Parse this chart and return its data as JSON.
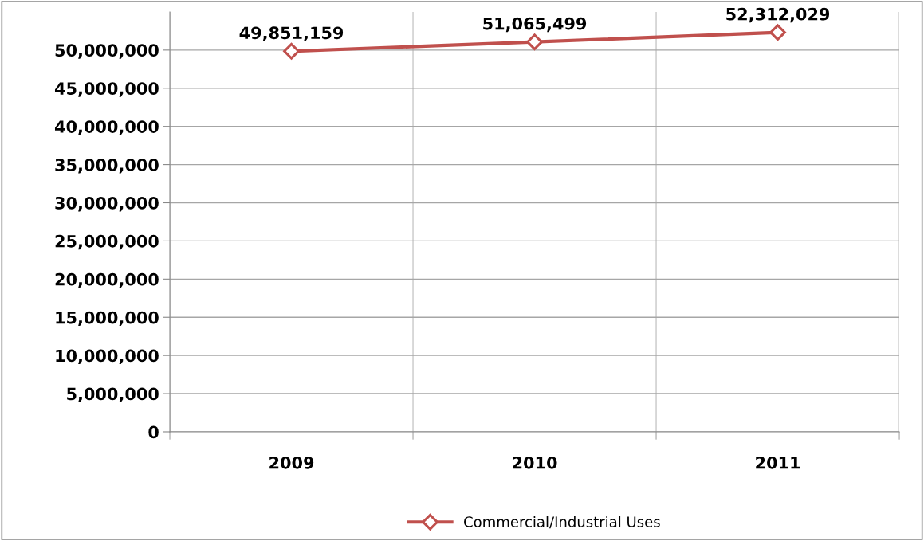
{
  "chart_data": {
    "type": "line",
    "categories": [
      "2009",
      "2010",
      "2011"
    ],
    "series": [
      {
        "name": "Commercial/Industrial Uses",
        "color": "#c0504d",
        "values": [
          49851159,
          51065499,
          52312029
        ],
        "value_labels": [
          "49,851,159",
          "51,065,499",
          "52,312,029"
        ]
      }
    ],
    "ylim": [
      0,
      55000000
    ],
    "yticks": [
      {
        "value": 0,
        "label": "0"
      },
      {
        "value": 5000000,
        "label": "5,000,000"
      },
      {
        "value": 10000000,
        "label": "10,000,000"
      },
      {
        "value": 15000000,
        "label": "15,000,000"
      },
      {
        "value": 20000000,
        "label": "20,000,000"
      },
      {
        "value": 25000000,
        "label": "25,000,000"
      },
      {
        "value": 30000000,
        "label": "30,000,000"
      },
      {
        "value": 35000000,
        "label": "35,000,000"
      },
      {
        "value": 40000000,
        "label": "40,000,000"
      },
      {
        "value": 45000000,
        "label": "45,000,000"
      },
      {
        "value": 50000000,
        "label": "50,000,000"
      }
    ],
    "grid": true,
    "legend": "bottom",
    "marker": "diamond",
    "line_style": "solid"
  }
}
